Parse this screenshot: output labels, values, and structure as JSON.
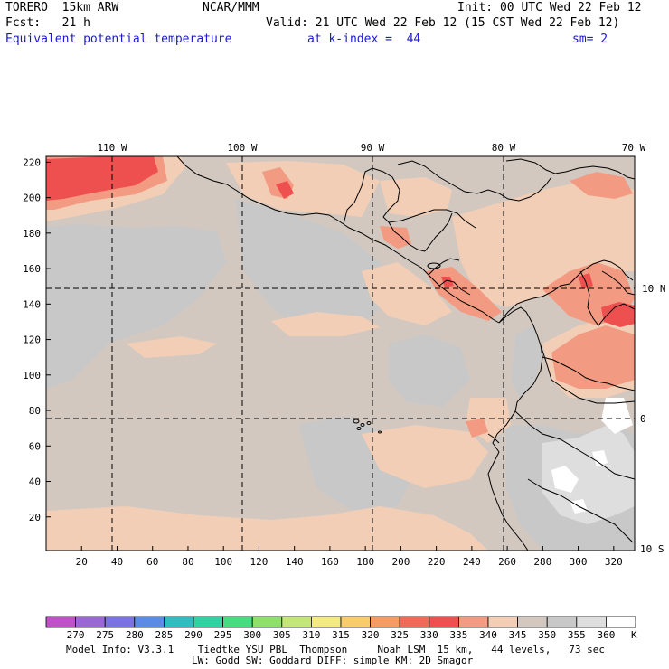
{
  "header": {
    "model": "TORERO  15km ARW",
    "center": "NCAR/MMM",
    "init": "Init: 00 UTC Wed 22 Feb 12",
    "fcst": "Fcst:   21 h",
    "valid": "Valid: 21 UTC Wed 22 Feb 12 (15 CST Wed 22 Feb 12)",
    "field": "Equivalent potential temperature",
    "level": "at k-index =  44",
    "smooth": "sm= 2"
  },
  "axes": {
    "x_ticks": [
      "20",
      "40",
      "60",
      "80",
      "100",
      "120",
      "140",
      "160",
      "180",
      "200",
      "220",
      "240",
      "260",
      "280",
      "300",
      "320"
    ],
    "y_ticks": [
      "20",
      "40",
      "60",
      "80",
      "100",
      "120",
      "140",
      "160",
      "180",
      "200",
      "220"
    ],
    "lon_labels": [
      "110 W",
      "100 W",
      "90 W",
      "80 W",
      "70 W"
    ],
    "lat_labels": [
      "10 N",
      "0",
      "10 S"
    ]
  },
  "colorbar": {
    "values": [
      "270",
      "275",
      "280",
      "285",
      "290",
      "295",
      "300",
      "305",
      "310",
      "315",
      "320",
      "325",
      "330",
      "335",
      "340",
      "345",
      "350",
      "355",
      "360"
    ],
    "unit": "K",
    "colors": [
      "#c050c8",
      "#9a68d2",
      "#7a72e2",
      "#5a8ce6",
      "#30bcc0",
      "#30d2a2",
      "#48dc82",
      "#8ee06a",
      "#c4e678",
      "#f4ea82",
      "#f8cc6c",
      "#f49c62",
      "#f06a58",
      "#ee5050",
      "#f29a82",
      "#f2ceb6",
      "#d2c8c0",
      "#c8c8c8",
      "#dedede",
      "#ffffff"
    ],
    "map_colors": {
      "base": "#d2c8c0",
      "grey": "#c8c8c8",
      "light_grey": "#dedede",
      "peach": "#f2ceb6",
      "salmon": "#f29a82",
      "red": "#ee5050",
      "white": "#ffffff"
    }
  },
  "footer": {
    "line1": "Model Info: V3.3.1    Tiedtke YSU PBL  Thompson     Noah LSM  15 km,   44 levels,   73 sec",
    "line2": "LW: Godd SW: Goddard DIFF: simple KM: 2D Smagor"
  }
}
